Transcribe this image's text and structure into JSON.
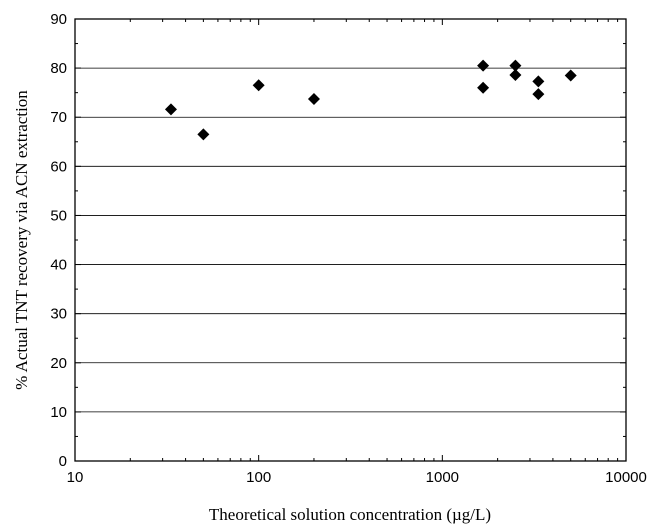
{
  "chart_data": {
    "type": "scatter",
    "title": "",
    "xlabel": "Theoretical solution concentration (µg/L)",
    "ylabel": "% Actual TNT recovery via ACN extraction",
    "x_scale": "log",
    "xlim": [
      10,
      10000
    ],
    "ylim": [
      0,
      90
    ],
    "x_ticks": [
      10,
      100,
      1000,
      10000
    ],
    "x_tick_labels": [
      "10",
      "100",
      "1000",
      "10000"
    ],
    "y_ticks": [
      0,
      10,
      20,
      30,
      40,
      50,
      60,
      70,
      80,
      90
    ],
    "y_tick_labels": [
      "0",
      "10",
      "20",
      "30",
      "40",
      "50",
      "60",
      "70",
      "80",
      "90"
    ],
    "grid": "horizontal",
    "marker": "diamond",
    "marker_color": "#000000",
    "series": [
      {
        "points": [
          {
            "x": 33.3,
            "y": 71.6
          },
          {
            "x": 50,
            "y": 66.5
          },
          {
            "x": 100,
            "y": 76.5
          },
          {
            "x": 200,
            "y": 73.7
          },
          {
            "x": 1667,
            "y": 80.5
          },
          {
            "x": 1667,
            "y": 76.0
          },
          {
            "x": 2500,
            "y": 80.5
          },
          {
            "x": 2500,
            "y": 78.6
          },
          {
            "x": 3333,
            "y": 77.3
          },
          {
            "x": 3333,
            "y": 74.7
          },
          {
            "x": 5000,
            "y": 78.5
          }
        ]
      }
    ]
  }
}
